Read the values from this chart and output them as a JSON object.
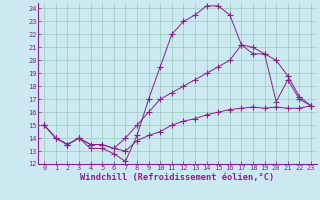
{
  "background_color": "#cce8f0",
  "grid_color": "#99ccbb",
  "line_color": "#882288",
  "xlim": [
    -0.5,
    23.5
  ],
  "ylim": [
    12,
    24.5
  ],
  "yticks": [
    12,
    13,
    14,
    15,
    16,
    17,
    18,
    19,
    20,
    21,
    22,
    23,
    24
  ],
  "xticks": [
    0,
    1,
    2,
    3,
    4,
    5,
    6,
    7,
    8,
    9,
    10,
    11,
    12,
    13,
    14,
    15,
    16,
    17,
    18,
    19,
    20,
    21,
    22,
    23
  ],
  "xlabel": "Windchill (Refroidissement éolien,°C)",
  "line1_x": [
    0,
    1,
    2,
    3,
    4,
    5,
    6,
    7,
    8,
    9,
    10,
    11,
    12,
    13,
    14,
    15,
    16,
    17,
    18,
    19,
    20,
    21,
    22,
    23
  ],
  "line1_y": [
    15,
    14,
    13.5,
    14,
    13.2,
    13.2,
    12.8,
    12.2,
    14.2,
    17.0,
    19.5,
    22.0,
    23.0,
    23.5,
    24.2,
    24.2,
    23.5,
    21.2,
    20.5,
    20.5,
    16.8,
    18.5,
    17.0,
    16.5
  ],
  "line2_x": [
    0,
    1,
    2,
    3,
    4,
    5,
    6,
    7,
    8,
    9,
    10,
    11,
    12,
    13,
    14,
    15,
    16,
    17,
    18,
    19,
    20,
    21,
    22,
    23
  ],
  "line2_y": [
    15,
    14,
    13.5,
    14,
    13.5,
    13.5,
    13.2,
    14.0,
    15.0,
    16.0,
    17.0,
    17.5,
    18.0,
    18.5,
    19.0,
    19.5,
    20.0,
    21.2,
    21.0,
    20.5,
    20.0,
    18.8,
    17.2,
    16.5
  ],
  "line3_x": [
    0,
    1,
    2,
    3,
    4,
    5,
    6,
    7,
    8,
    9,
    10,
    11,
    12,
    13,
    14,
    15,
    16,
    17,
    18,
    19,
    20,
    21,
    22,
    23
  ],
  "line3_y": [
    15,
    14,
    13.5,
    14,
    13.5,
    13.5,
    13.2,
    13.0,
    13.8,
    14.2,
    14.5,
    15.0,
    15.3,
    15.5,
    15.8,
    16.0,
    16.2,
    16.3,
    16.4,
    16.3,
    16.4,
    16.3,
    16.3,
    16.5
  ],
  "tick_fontsize": 5.0,
  "xlabel_fontsize": 6.2,
  "marker_size": 2.5,
  "linewidth": 0.7
}
